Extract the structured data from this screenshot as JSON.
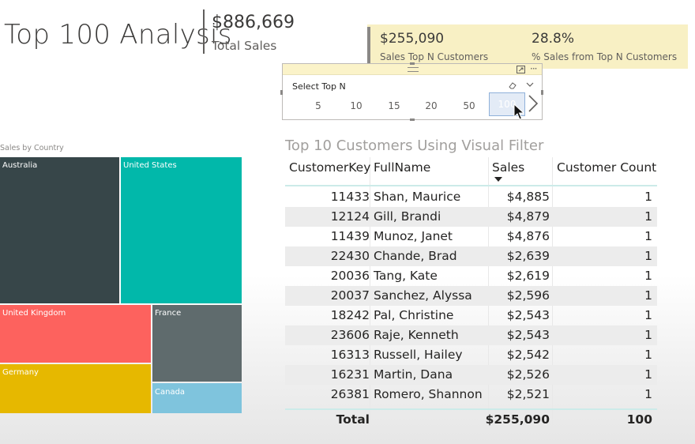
{
  "header": {
    "title": "Top 100 Analysis",
    "total_sales_value": "$886,669",
    "total_sales_label": "Total Sales"
  },
  "kpi": {
    "sales_top_n_value": "$255,090",
    "sales_top_n_label": "Sales Top N Customers",
    "pct_value": "28.8%",
    "pct_label": "% Sales from Top N Customers"
  },
  "slicer": {
    "title": "Select Top N",
    "options": [
      "5",
      "10",
      "15",
      "20",
      "50",
      "100"
    ],
    "selected": "100",
    "icons": {
      "focus": "focus-mode-icon",
      "more": "more-options-icon",
      "eraser": "eraser-icon",
      "chevron": "chevron-down-icon",
      "next": "chevron-right-icon"
    }
  },
  "treemap": {
    "title": "Sales by Country",
    "tiles": [
      "Australia",
      "United States",
      "United Kingdom",
      "France",
      "Germany",
      "Canada"
    ]
  },
  "colors": {
    "australia": "#374649",
    "united_states": "#01b8aa",
    "united_kingdom": "#fd625e",
    "france": "#5f6b6d",
    "germany": "#e6b800",
    "canada": "#7fc4dd",
    "kpi_background": "#f8f0c4"
  },
  "table": {
    "title": "Top 10 Customers Using Visual Filter",
    "columns": [
      "CustomerKey",
      "FullName",
      "Sales",
      "Customer Count"
    ],
    "sort_column": "Sales",
    "rows": [
      [
        "11433",
        "Shan, Maurice",
        "$4,885",
        "1"
      ],
      [
        "12124",
        "Gill, Brandi",
        "$4,879",
        "1"
      ],
      [
        "11439",
        "Munoz, Janet",
        "$4,876",
        "1"
      ],
      [
        "22430",
        "Chande, Brad",
        "$2,639",
        "1"
      ],
      [
        "20036",
        "Tang, Kate",
        "$2,619",
        "1"
      ],
      [
        "20037",
        "Sanchez, Alyssa",
        "$2,596",
        "1"
      ],
      [
        "18242",
        "Pal, Christine",
        "$2,543",
        "1"
      ],
      [
        "23606",
        "Raje, Kenneth",
        "$2,543",
        "1"
      ],
      [
        "16313",
        "Russell, Hailey",
        "$2,542",
        "1"
      ],
      [
        "16231",
        "Martin, Dana",
        "$2,526",
        "1"
      ],
      [
        "26381",
        "Romero, Shannon",
        "$2,521",
        "1"
      ]
    ],
    "total": {
      "label": "Total",
      "sales": "$255,090",
      "count": "100"
    }
  }
}
